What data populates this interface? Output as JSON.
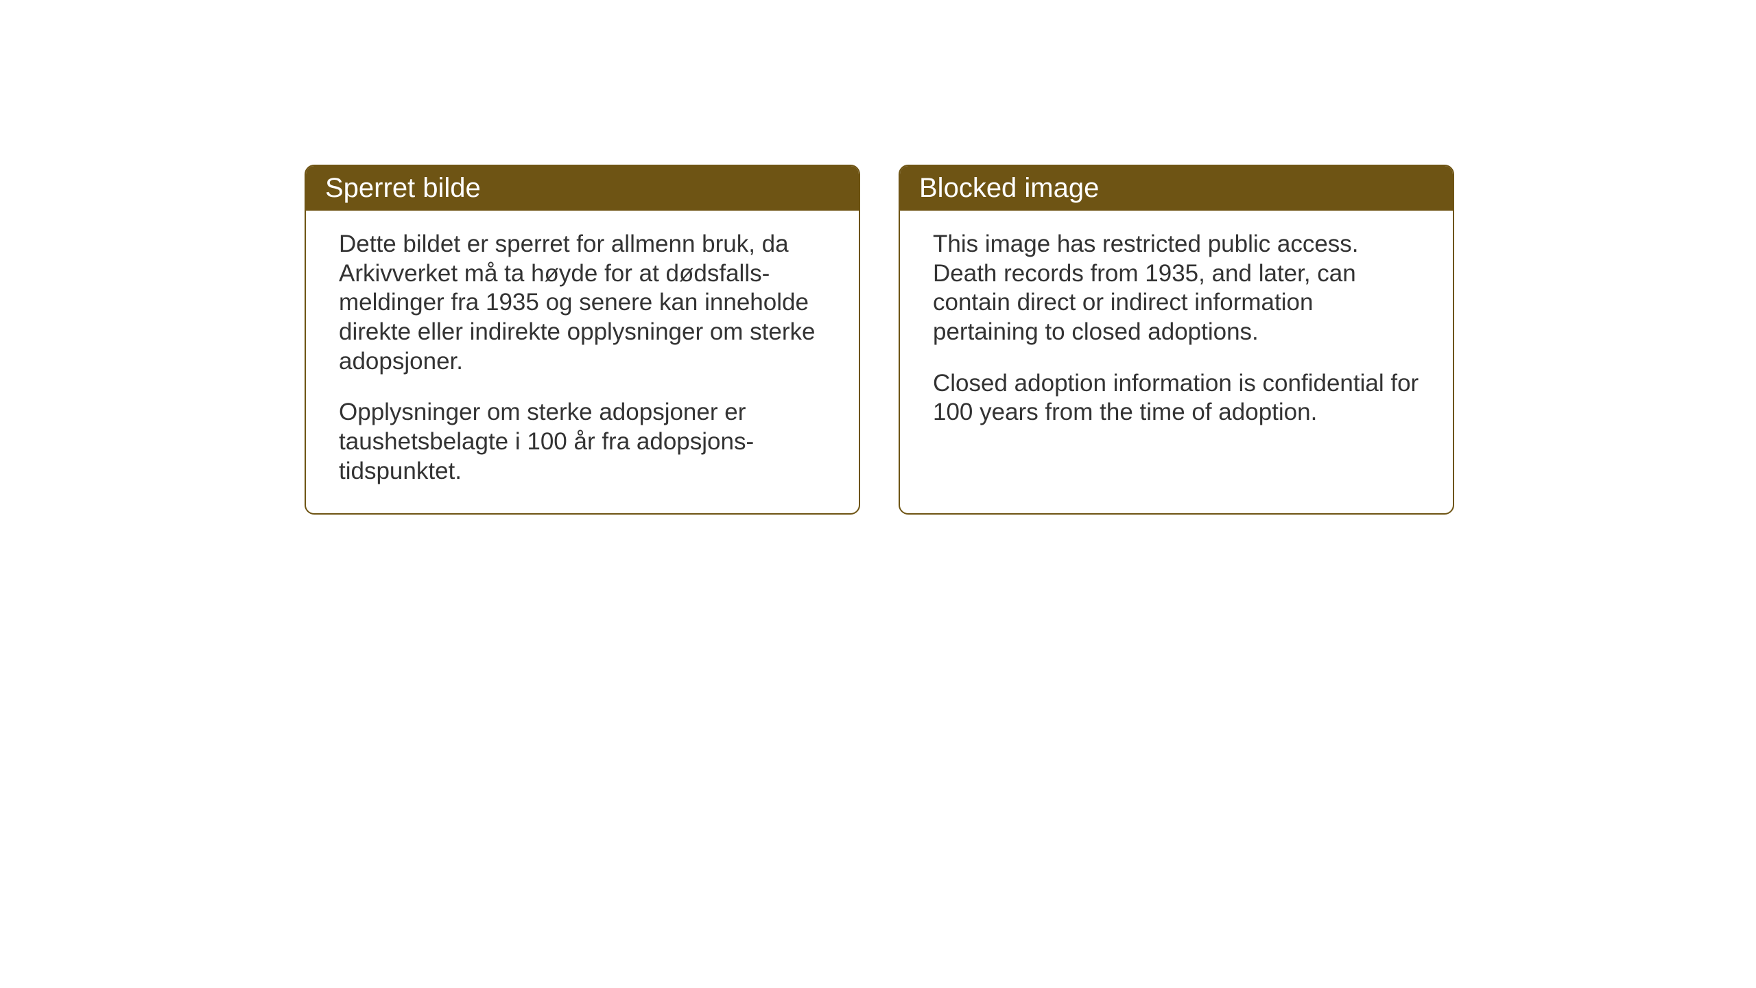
{
  "cards": {
    "norwegian": {
      "title": "Sperret bilde",
      "paragraph1": "Dette bildet er sperret for allmenn bruk, da Arkivverket må ta høyde for at dødsfalls-meldinger fra 1935 og senere kan inneholde direkte eller indirekte opplysninger om sterke adopsjoner.",
      "paragraph2": "Opplysninger om sterke adopsjoner er taushetsbelagte i 100 år fra adopsjons-tidspunktet."
    },
    "english": {
      "title": "Blocked image",
      "paragraph1": "This image has restricted public access. Death records from 1935, and later, can contain direct or indirect information pertaining to closed adoptions.",
      "paragraph2": "Closed adoption information is confidential for 100 years from the time of adoption."
    }
  },
  "styling": {
    "card_border_color": "#6e5414",
    "card_header_background": "#6e5414",
    "card_header_text_color": "#ffffff",
    "card_body_background": "#ffffff",
    "card_body_text_color": "#333333",
    "page_background": "#ffffff",
    "title_fontsize": 40,
    "body_fontsize": 35,
    "border_radius": 14,
    "border_width": 2
  }
}
